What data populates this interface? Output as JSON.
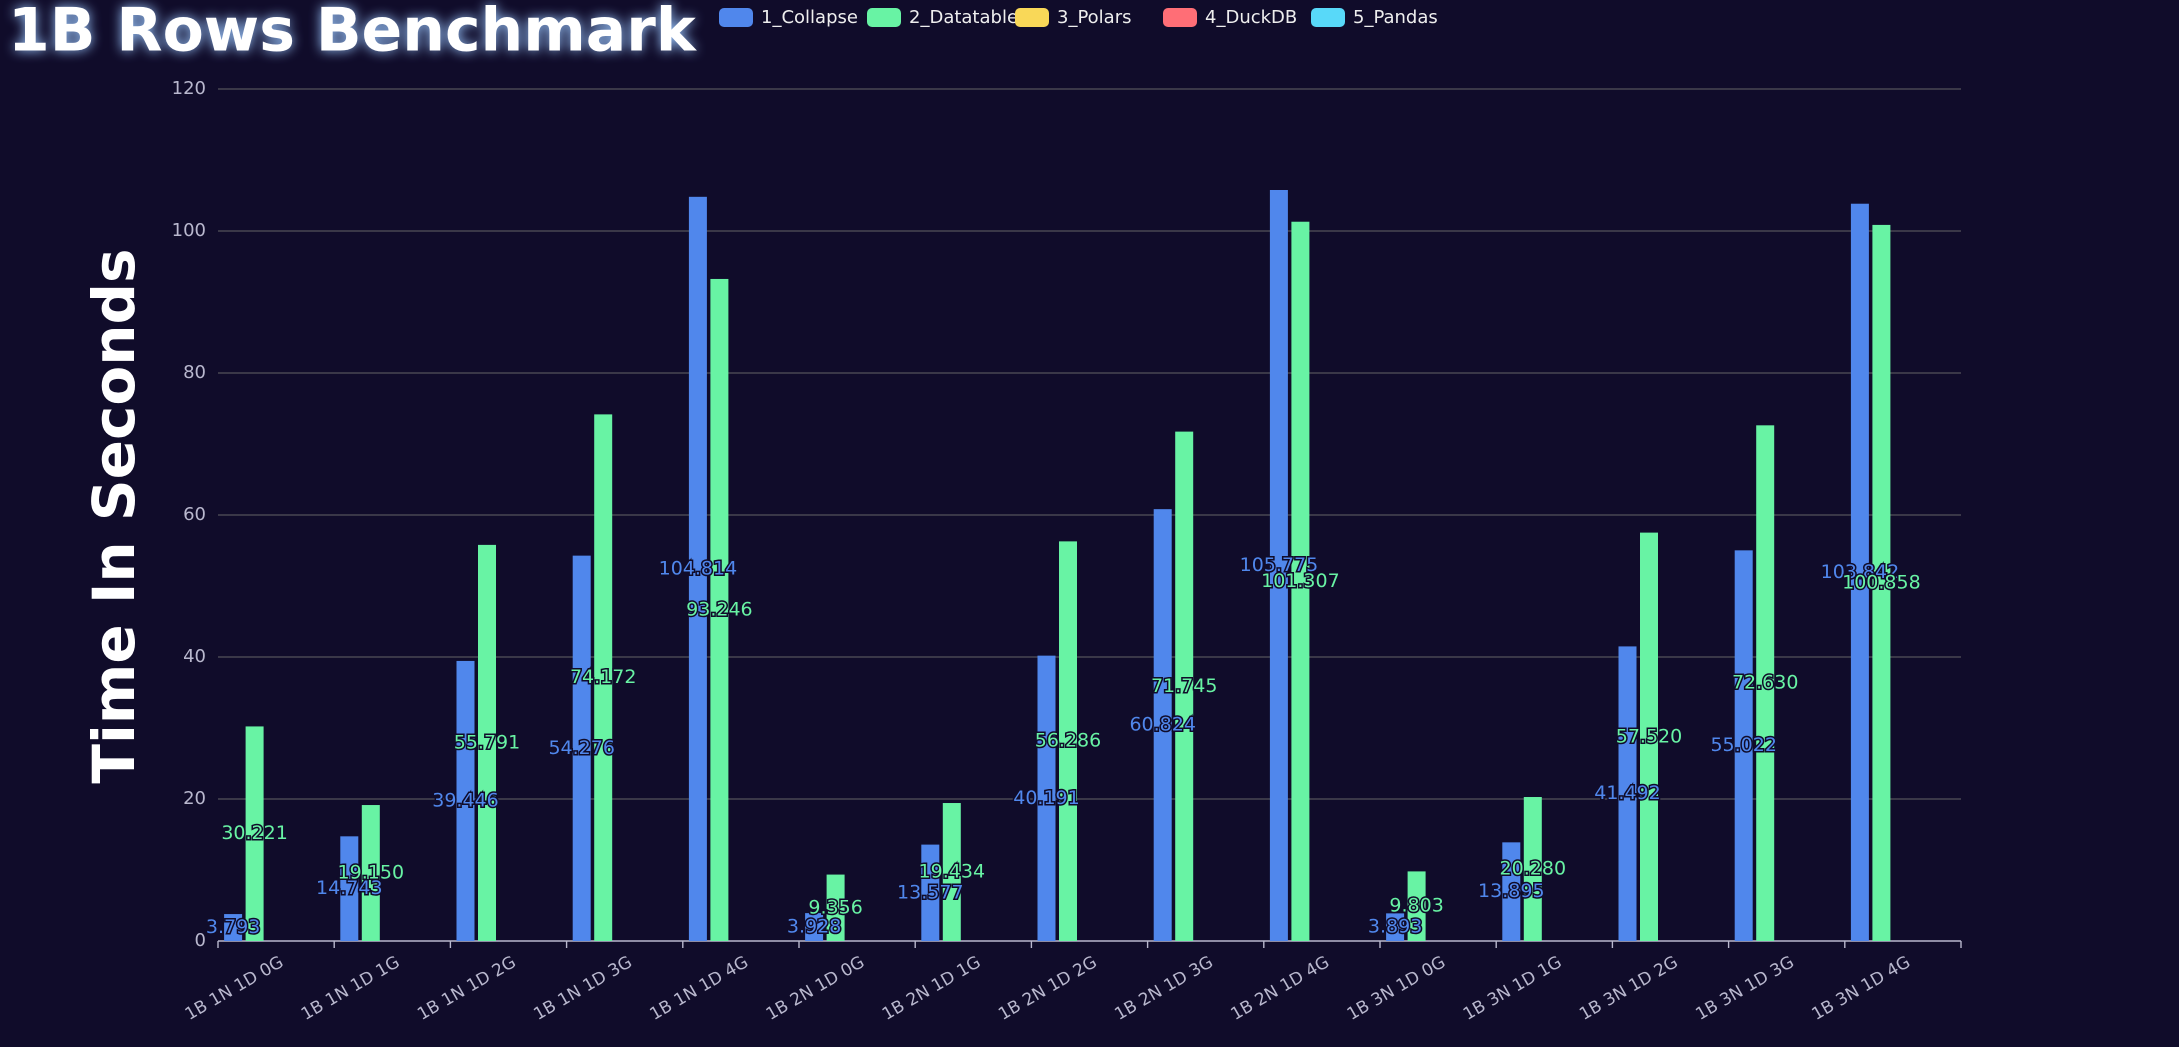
{
  "chart_data": {
    "type": "bar",
    "title": "1B Rows Benchmark",
    "y_label": "Time In Seconds",
    "categories": [
      "1B 1N 1D 0G",
      "1B 1N 1D 1G",
      "1B 1N 1D 2G",
      "1B 1N 1D 3G",
      "1B 1N 1D 4G",
      "1B 2N 1D 0G",
      "1B 2N 1D 1G",
      "1B 2N 1D 2G",
      "1B 2N 1D 3G",
      "1B 2N 1D 4G",
      "1B 3N 1D 0G",
      "1B 3N 1D 1G",
      "1B 3N 1D 2G",
      "1B 3N 1D 3G",
      "1B 3N 1D 4G"
    ],
    "series": [
      {
        "name": "1_Collapse",
        "color": "#5087ec",
        "values": [
          3.793,
          14.743,
          39.446,
          54.276,
          104.814,
          3.928,
          13.577,
          40.191,
          60.824,
          105.775,
          3.893,
          13.895,
          41.492,
          55.022,
          103.842
        ],
        "value_labels": [
          "3.793",
          "14.743",
          "39.446",
          "54.276",
          "104.814",
          "3.928",
          "13.577",
          "40.191",
          "60.824",
          "105.775",
          "3.893",
          "13.895",
          "41.492",
          "55.022",
          "103.842"
        ]
      },
      {
        "name": "2_Datatable",
        "color": "#68f3a4",
        "values": [
          30.221,
          19.15,
          55.791,
          74.172,
          93.246,
          9.356,
          19.434,
          56.286,
          71.745,
          101.307,
          9.803,
          20.28,
          57.52,
          72.63,
          100.858
        ],
        "value_labels": [
          "30.221",
          "19.150",
          "55.791",
          "74.172",
          "93.246",
          "9.356",
          "19.434",
          "56.286",
          "71.745",
          "101.307",
          "9.803",
          "20.280",
          "57.520",
          "72.630",
          "100.858"
        ]
      },
      {
        "name": "3_Polars",
        "color": "#f9d858",
        "values": [
          null,
          null,
          null,
          null,
          null,
          null,
          null,
          null,
          null,
          null,
          null,
          null,
          null,
          null,
          null
        ]
      },
      {
        "name": "4_DuckDB",
        "color": "#ff6e76",
        "values": [
          null,
          null,
          null,
          null,
          null,
          null,
          null,
          null,
          null,
          null,
          null,
          null,
          null,
          null,
          null
        ]
      },
      {
        "name": "5_Pandas",
        "color": "#58d9f9",
        "values": [
          null,
          null,
          null,
          null,
          null,
          null,
          null,
          null,
          null,
          null,
          null,
          null,
          null,
          null,
          null
        ]
      }
    ],
    "ylim": [
      0,
      120
    ],
    "yticks": [
      0,
      20,
      40,
      60,
      80,
      100,
      120
    ],
    "grid": true,
    "legend": "top"
  }
}
